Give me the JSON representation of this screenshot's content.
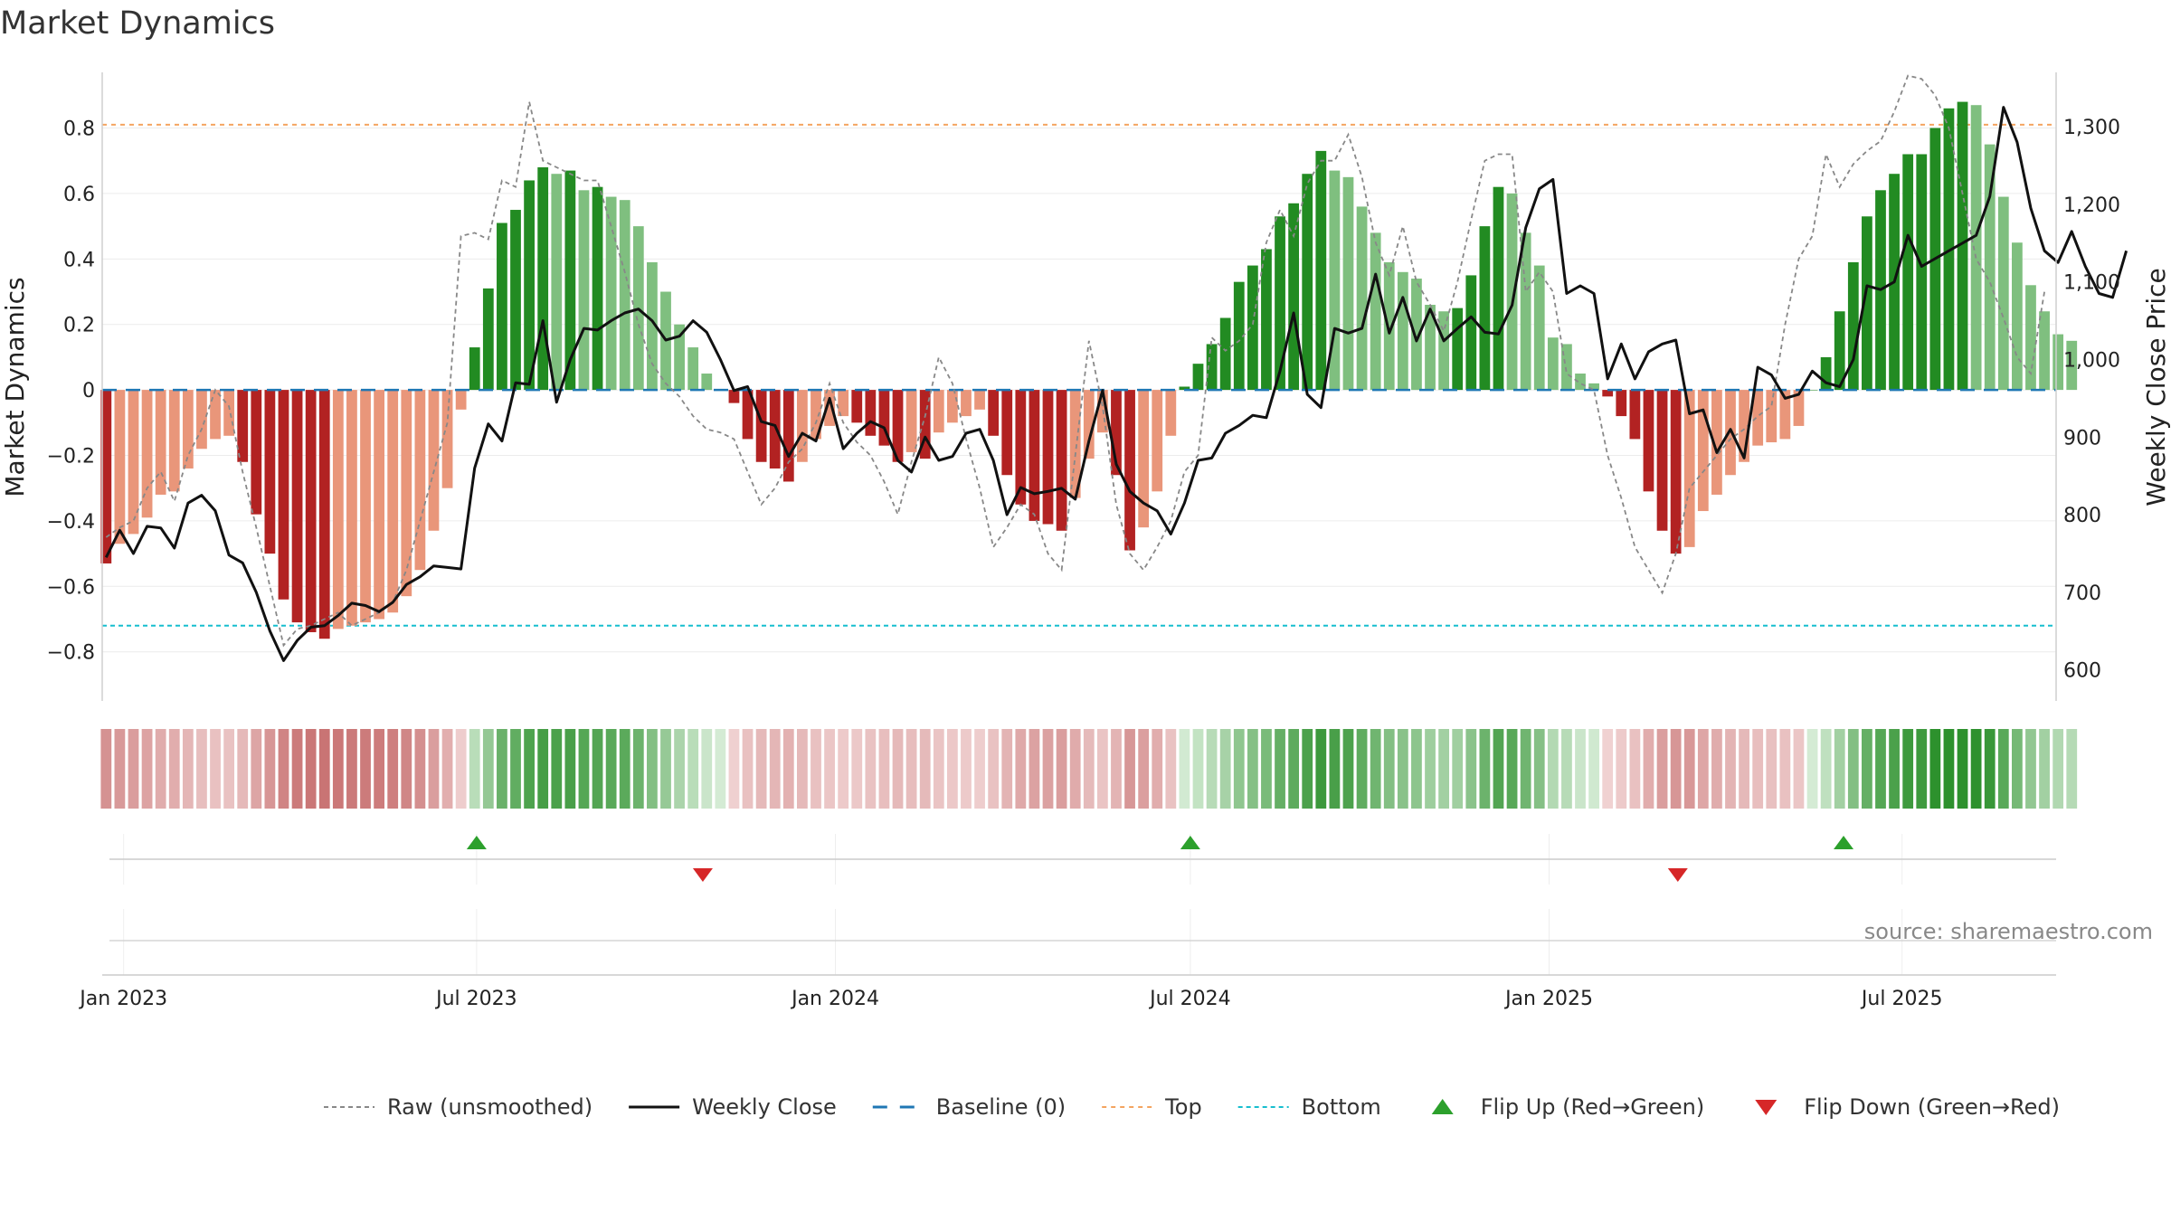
{
  "title": "Market Dynamics",
  "source": "source: sharemaestro.com",
  "chart_data": {
    "type": "bar",
    "y_left_label": "Market Dynamics",
    "y_right_label": "Weekly Close Price",
    "y_left_range": [
      -0.95,
      0.97
    ],
    "y_right_range": [
      560,
      1370
    ],
    "y_left_ticks": [
      -0.8,
      -0.6,
      -0.4,
      -0.2,
      0,
      0.2,
      0.4,
      0.6,
      0.8
    ],
    "y_left_tick_labels": [
      "−0.8",
      "−0.6",
      "−0.4",
      "−0.2",
      "0",
      "0.2",
      "0.4",
      "0.6",
      "0.8"
    ],
    "y_right_ticks": [
      600,
      700,
      800,
      900,
      1000,
      1100,
      1200,
      1300
    ],
    "y_right_tick_labels": [
      "600",
      "700",
      "800",
      "900",
      "1,000",
      "1,100",
      "1,200",
      "1,300"
    ],
    "x_range": [
      "2022-12-21",
      "2025-09-18"
    ],
    "x_ticks": [
      "2023-01-01",
      "2023-07-01",
      "2024-01-01",
      "2024-07-01",
      "2025-01-01",
      "2025-07-01"
    ],
    "x_tick_labels": [
      "Jan 2023",
      "Jul 2023",
      "Jan 2024",
      "Jul 2024",
      "Jan 2025",
      "Jul 2025"
    ],
    "start_date": "2022-12-23",
    "week_step_days": 7,
    "top_line": 0.81,
    "bottom_line": -0.72,
    "baseline": 0,
    "grid": true,
    "colors": {
      "strong_green": "#228b22",
      "light_green": "#7fbf7f",
      "strong_red": "#b22222",
      "light_red": "#e9967a",
      "raw_line": "#888888",
      "close_line": "#111111",
      "baseline": "#1f77b4",
      "top": "#f4a460",
      "bottom": "#17becf",
      "flip_up": "#2ca02c",
      "flip_down": "#d62728"
    },
    "dynamics": [
      -0.53,
      -0.47,
      -0.44,
      -0.39,
      -0.32,
      -0.31,
      -0.24,
      -0.18,
      -0.15,
      -0.14,
      -0.22,
      -0.38,
      -0.5,
      -0.64,
      -0.71,
      -0.74,
      -0.76,
      -0.73,
      -0.72,
      -0.71,
      -0.7,
      -0.68,
      -0.63,
      -0.55,
      -0.43,
      -0.3,
      -0.06,
      0.13,
      0.31,
      0.51,
      0.55,
      0.64,
      0.68,
      0.66,
      0.67,
      0.61,
      0.62,
      0.59,
      0.58,
      0.5,
      0.39,
      0.3,
      0.2,
      0.13,
      0.05,
      0,
      -0.04,
      -0.15,
      -0.22,
      -0.24,
      -0.28,
      -0.22,
      -0.15,
      -0.11,
      -0.08,
      -0.1,
      -0.14,
      -0.17,
      -0.22,
      -0.19,
      -0.21,
      -0.13,
      -0.1,
      -0.08,
      -0.06,
      -0.14,
      -0.26,
      -0.35,
      -0.4,
      -0.41,
      -0.43,
      -0.33,
      -0.21,
      -0.13,
      -0.26,
      -0.49,
      -0.42,
      -0.31,
      -0.14,
      0.01,
      0.08,
      0.14,
      0.22,
      0.33,
      0.38,
      0.43,
      0.53,
      0.57,
      0.66,
      0.73,
      0.67,
      0.65,
      0.56,
      0.48,
      0.39,
      0.36,
      0.34,
      0.26,
      0.24,
      0.25,
      0.35,
      0.5,
      0.62,
      0.6,
      0.48,
      0.38,
      0.16,
      0.14,
      0.05,
      0.02,
      -0.02,
      -0.08,
      -0.15,
      -0.31,
      -0.43,
      -0.5,
      -0.48,
      -0.37,
      -0.32,
      -0.26,
      -0.22,
      -0.17,
      -0.16,
      -0.15,
      -0.11,
      0,
      0.1,
      0.24,
      0.39,
      0.53,
      0.61,
      0.66,
      0.72,
      0.72,
      0.8,
      0.86,
      0.88,
      0.87,
      0.75,
      0.59,
      0.45,
      0.32,
      0.24,
      0.17,
      0.15
    ],
    "weekly_close": [
      745,
      780,
      750,
      785,
      783,
      757,
      815,
      825,
      805,
      748,
      738,
      700,
      650,
      612,
      638,
      655,
      657,
      670,
      686,
      683,
      675,
      687,
      710,
      720,
      734,
      732,
      730,
      860,
      917,
      895,
      970,
      968,
      1050,
      945,
      1000,
      1040,
      1038,
      1050,
      1060,
      1065,
      1050,
      1025,
      1030,
      1050,
      1035,
      1000,
      960,
      965,
      920,
      915,
      875,
      905,
      895,
      950,
      885,
      905,
      920,
      912,
      870,
      855,
      900,
      870,
      875,
      905,
      910,
      870,
      800,
      835,
      827,
      830,
      834,
      820,
      895,
      960,
      865,
      830,
      815,
      805,
      775,
      815,
      870,
      873,
      905,
      915,
      928,
      925,
      985,
      1060,
      955,
      938,
      1040,
      1034,
      1040,
      1110,
      1034,
      1080,
      1024,
      1065,
      1024,
      1040,
      1055,
      1035,
      1033,
      1070,
      1170,
      1220,
      1232,
      1085,
      1095,
      1085,
      975,
      1020,
      975,
      1010,
      1020,
      1025,
      930,
      935,
      880,
      910,
      873,
      990,
      980,
      950,
      955,
      985,
      970,
      965,
      1000,
      1095,
      1090,
      1100,
      1160,
      1120,
      1130,
      1140,
      1150,
      1160,
      1210,
      1325,
      1280,
      1195,
      1140,
      1125,
      1165,
      1120,
      1085,
      1080,
      1140
    ],
    "raw": [
      -0.45,
      -0.42,
      -0.4,
      -0.3,
      -0.25,
      -0.34,
      -0.2,
      -0.12,
      0,
      -0.05,
      -0.25,
      -0.42,
      -0.6,
      -0.78,
      -0.73,
      -0.72,
      -0.7,
      -0.68,
      -0.72,
      -0.7,
      -0.68,
      -0.65,
      -0.55,
      -0.4,
      -0.25,
      -0.1,
      0.47,
      0.48,
      0.46,
      0.64,
      0.62,
      0.88,
      0.7,
      0.68,
      0.66,
      0.64,
      0.64,
      0.5,
      0.36,
      0.2,
      0.08,
      0.02,
      -0.02,
      -0.08,
      -0.12,
      -0.13,
      -0.15,
      -0.25,
      -0.35,
      -0.3,
      -0.22,
      -0.18,
      -0.1,
      0.02,
      -0.1,
      -0.16,
      -0.2,
      -0.28,
      -0.38,
      -0.22,
      -0.08,
      0.1,
      0.02,
      -0.15,
      -0.3,
      -0.48,
      -0.42,
      -0.35,
      -0.38,
      -0.5,
      -0.55,
      -0.2,
      0.15,
      -0.05,
      -0.35,
      -0.5,
      -0.55,
      -0.48,
      -0.4,
      -0.25,
      -0.2,
      0.16,
      0.12,
      0.15,
      0.2,
      0.45,
      0.55,
      0.47,
      0.63,
      0.7,
      0.7,
      0.78,
      0.65,
      0.45,
      0.35,
      0.5,
      0.33,
      0.26,
      0.18,
      0.33,
      0.52,
      0.7,
      0.72,
      0.72,
      0.3,
      0.36,
      0.3,
      0.05,
      0.02,
      0.0,
      -0.2,
      -0.33,
      -0.48,
      -0.55,
      -0.62,
      -0.5,
      -0.3,
      -0.25,
      -0.2,
      -0.15,
      -0.12,
      -0.08,
      -0.05,
      0.2,
      0.4,
      0.47,
      0.72,
      0.62,
      0.69,
      0.73,
      0.76,
      0.85,
      0.96,
      0.95,
      0.9,
      0.8,
      0.6,
      0.4,
      0.33,
      0.22,
      0.1,
      0.05,
      0.3
    ],
    "flip_up_dates": [
      "2023-07-01",
      "2024-07-01",
      "2025-06-01"
    ],
    "flip_down_dates": [
      "2023-10-25",
      "2025-03-08"
    ],
    "legend": [
      {
        "name": "Raw (unsmoothed)",
        "style": "raw"
      },
      {
        "name": "Weekly Close",
        "style": "close"
      },
      {
        "name": "Baseline (0)",
        "style": "baseline"
      },
      {
        "name": "Top",
        "style": "top"
      },
      {
        "name": "Bottom",
        "style": "bottom"
      },
      {
        "name": "Flip Up (Red→Green)",
        "style": "flip_up"
      },
      {
        "name": "Flip Down (Green→Red)",
        "style": "flip_down"
      }
    ]
  }
}
